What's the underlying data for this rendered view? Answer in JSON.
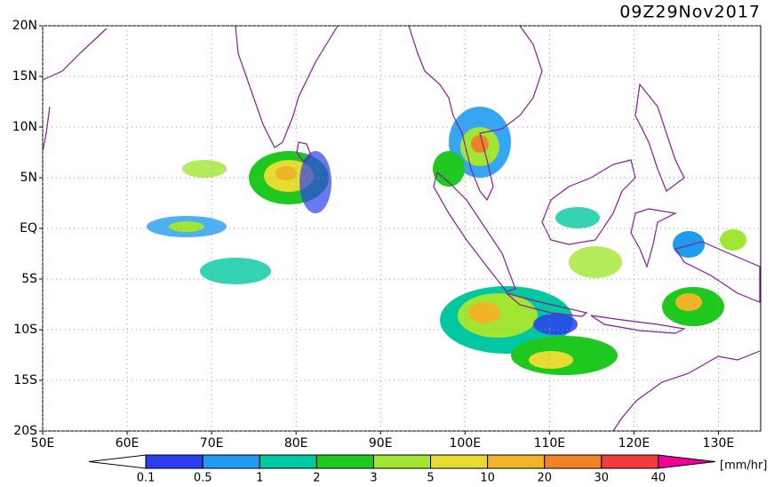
{
  "map": {
    "title": "09Z29Nov2017",
    "lonlim": [
      50,
      135
    ],
    "latlim": [
      -20,
      20
    ],
    "lat_ticks": [
      {
        "value": 20,
        "label": "20N"
      },
      {
        "value": 15,
        "label": "15N"
      },
      {
        "value": 10,
        "label": "10N"
      },
      {
        "value": 5,
        "label": "5N"
      },
      {
        "value": 0,
        "label": "EQ"
      },
      {
        "value": -5,
        "label": "5S"
      },
      {
        "value": -10,
        "label": "10S"
      },
      {
        "value": -15,
        "label": "15S"
      },
      {
        "value": -20,
        "label": "20S"
      }
    ],
    "lon_ticks": [
      {
        "value": 50,
        "label": "50E"
      },
      {
        "value": 60,
        "label": "60E"
      },
      {
        "value": 70,
        "label": "70E"
      },
      {
        "value": 80,
        "label": "80E"
      },
      {
        "value": 90,
        "label": "90E"
      },
      {
        "value": 100,
        "label": "100E"
      },
      {
        "value": 110,
        "label": "110E"
      },
      {
        "value": 120,
        "label": "120E"
      },
      {
        "value": 130,
        "label": "130E"
      }
    ],
    "grid": true,
    "colorbar": {
      "levels": [
        0.1,
        0.5,
        1,
        2,
        3,
        5,
        10,
        20,
        30,
        40
      ],
      "colors": [
        "#ffffff",
        "#2b3ff0",
        "#1f9cf0",
        "#00c8a0",
        "#1ec81e",
        "#a0e632",
        "#e6dc32",
        "#f0b428",
        "#f08228",
        "#f03c3c",
        "#f00096"
      ],
      "unit": "[mm/hr]"
    }
  }
}
